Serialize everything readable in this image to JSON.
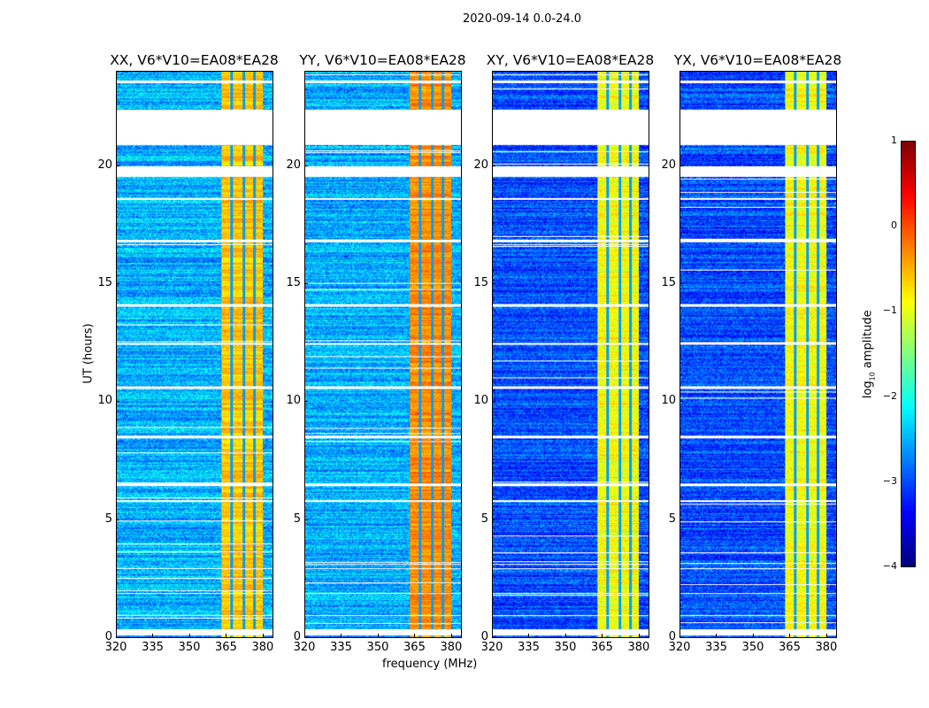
{
  "chart_data": {
    "type": "heatmap",
    "title": "2020-09-14 0.0-24.0",
    "xlabel": "frequency (MHz)",
    "ylabel": "UT (hours)",
    "xlim": [
      320,
      384
    ],
    "ylim": [
      0,
      24
    ],
    "xticks": [
      320,
      335,
      350,
      365,
      380
    ],
    "yticks": [
      0,
      5,
      10,
      15,
      20
    ],
    "colorbar": {
      "label": "log10 amplitude",
      "label_main": "log",
      "label_sub": "10",
      "label_rest": " amplitude",
      "range": [
        -4,
        1
      ],
      "ticks": [
        1,
        0,
        -1,
        -2,
        -3,
        -4
      ],
      "tick_labels": [
        "1",
        "0",
        "−1",
        "−2",
        "−3",
        "−4"
      ],
      "colormap": "jet"
    },
    "panels": [
      {
        "title": "XX, V6*V10=EA08*EA28",
        "background_level": -2.5,
        "rfi_band_mhz": [
          363,
          380
        ],
        "rfi_level": -0.6
      },
      {
        "title": "YY, V6*V10=EA08*EA28",
        "background_level": -2.5,
        "rfi_band_mhz": [
          363,
          380
        ],
        "rfi_level": -0.3
      },
      {
        "title": "XY, V6*V10=EA08*EA28",
        "background_level": -3.0,
        "rfi_band_mhz": [
          363,
          380
        ],
        "rfi_level": -0.9
      },
      {
        "title": "YX, V6*V10=EA08*EA28",
        "background_level": -3.0,
        "rfi_band_mhz": [
          363,
          380
        ],
        "rfi_level": -0.9
      }
    ],
    "rfi_channel_gaps_mhz": [
      367,
      372,
      376.5
    ],
    "flagged_hours": [
      [
        20.9,
        22.4
      ],
      [
        19.55,
        20.0
      ],
      [
        5.75,
        5.85
      ],
      [
        0.1,
        0.35
      ],
      [
        8.45,
        8.55
      ],
      [
        10.55,
        10.65
      ],
      [
        14.05,
        14.15
      ],
      [
        12.45,
        12.5
      ],
      [
        6.45,
        6.55
      ],
      [
        2.9,
        2.95
      ],
      [
        16.8,
        16.9
      ],
      [
        18.6,
        18.65
      ],
      [
        23.55,
        23.65
      ],
      [
        1.85,
        1.9
      ],
      [
        0.9,
        0.95
      ]
    ]
  }
}
